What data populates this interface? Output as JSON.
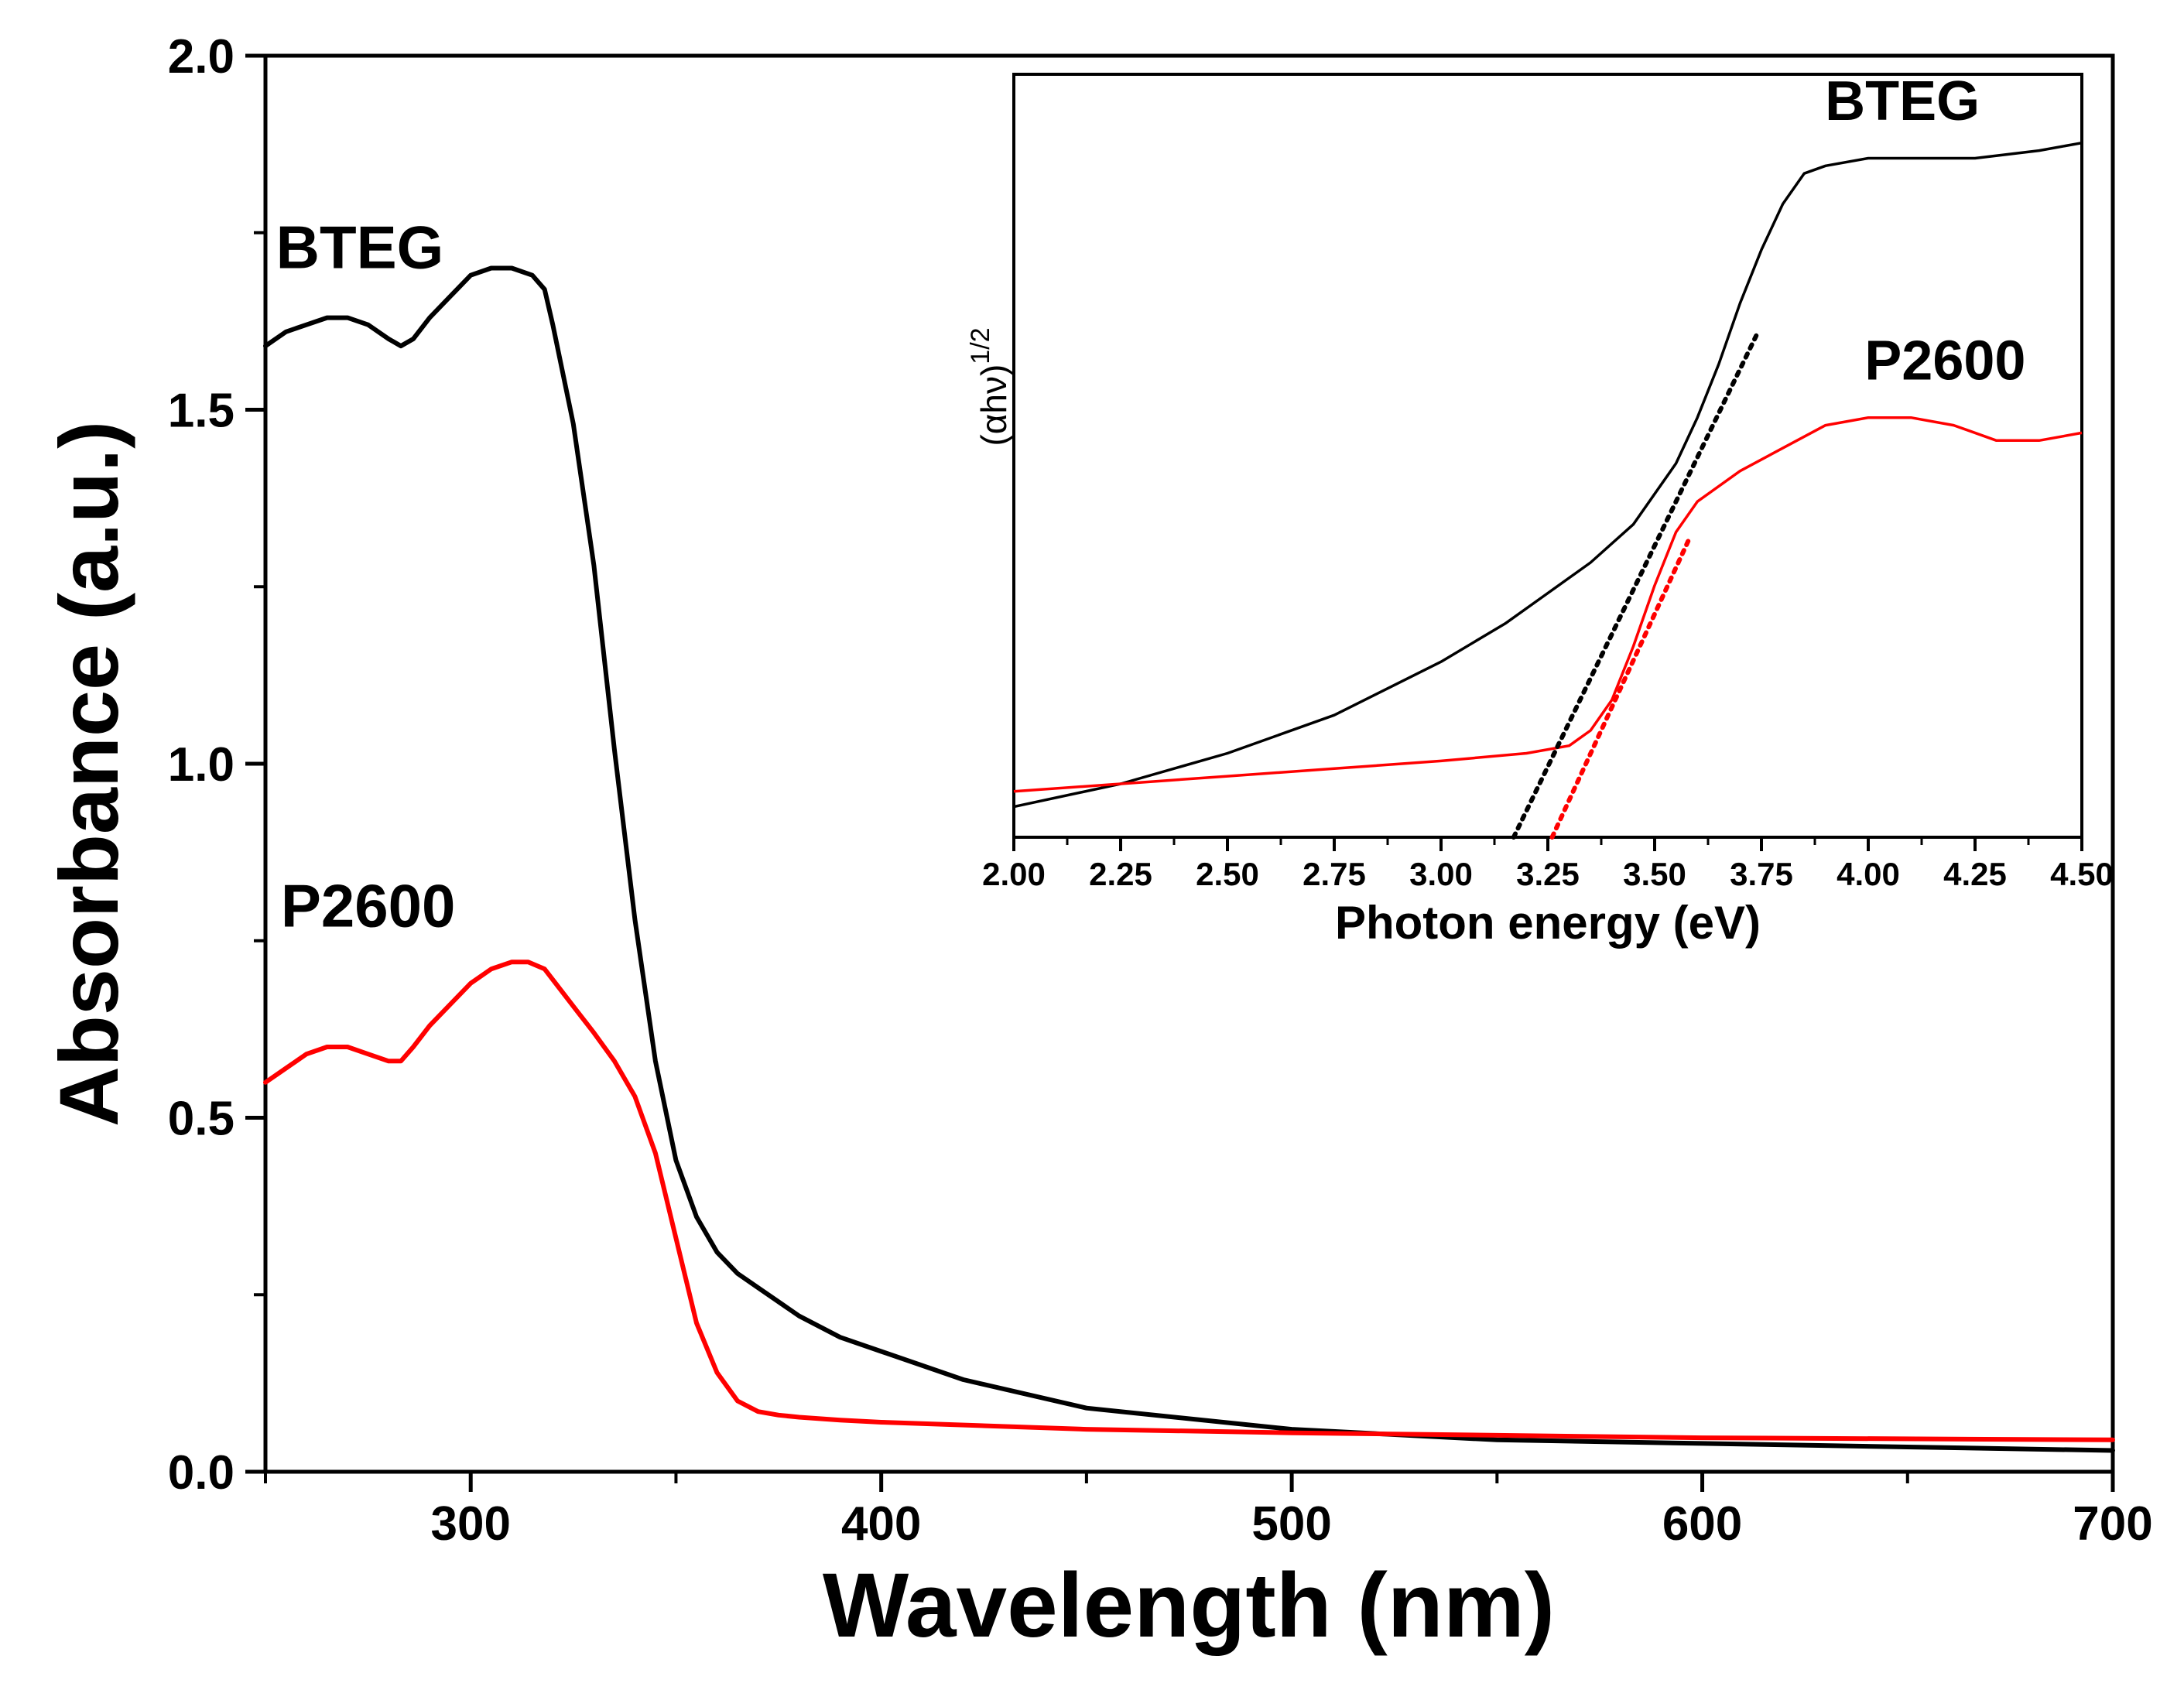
{
  "chart_data": [
    {
      "type": "line",
      "role": "main",
      "title": "",
      "xlabel": "Wavelength (nm)",
      "ylabel": "Absorbance (a.u.)",
      "xlim": [
        250,
        700
      ],
      "ylim": [
        0.0,
        2.0
      ],
      "xticks": [
        300,
        400,
        500,
        600,
        700
      ],
      "xtick_labels": [
        "300",
        "400",
        "500",
        "600",
        "700"
      ],
      "yticks": [
        0.0,
        0.5,
        1.0,
        1.5,
        2.0
      ],
      "ytick_labels": [
        "0.0",
        "0.5",
        "1.0",
        "1.5",
        "2.0"
      ],
      "grid": false,
      "series": [
        {
          "name": "BTEG",
          "color": "#000000",
          "x": [
            250,
            255,
            260,
            265,
            270,
            275,
            280,
            283,
            286,
            290,
            295,
            300,
            305,
            310,
            315,
            318,
            320,
            325,
            330,
            335,
            340,
            345,
            350,
            355,
            360,
            365,
            370,
            380,
            390,
            400,
            420,
            450,
            500,
            550,
            600,
            650,
            700
          ],
          "y": [
            1.59,
            1.61,
            1.62,
            1.63,
            1.63,
            1.62,
            1.6,
            1.59,
            1.6,
            1.63,
            1.66,
            1.69,
            1.7,
            1.7,
            1.69,
            1.67,
            1.62,
            1.48,
            1.28,
            1.02,
            0.78,
            0.58,
            0.44,
            0.36,
            0.31,
            0.28,
            0.26,
            0.22,
            0.19,
            0.17,
            0.13,
            0.09,
            0.06,
            0.045,
            0.04,
            0.035,
            0.03
          ]
        },
        {
          "name": "P2600",
          "color": "#ff0000",
          "x": [
            250,
            255,
            260,
            265,
            270,
            275,
            280,
            283,
            286,
            290,
            295,
            300,
            305,
            310,
            314,
            318,
            322,
            326,
            330,
            335,
            340,
            345,
            350,
            355,
            360,
            365,
            370,
            375,
            380,
            390,
            400,
            450,
            500,
            600,
            700
          ],
          "y": [
            0.55,
            0.57,
            0.59,
            0.6,
            0.6,
            0.59,
            0.58,
            0.58,
            0.6,
            0.63,
            0.66,
            0.69,
            0.71,
            0.72,
            0.72,
            0.71,
            0.68,
            0.65,
            0.62,
            0.58,
            0.53,
            0.45,
            0.33,
            0.21,
            0.14,
            0.1,
            0.085,
            0.08,
            0.077,
            0.073,
            0.07,
            0.06,
            0.055,
            0.048,
            0.045
          ]
        }
      ],
      "annotations": [
        {
          "text": "BTEG",
          "x": 273,
          "y": 1.7
        },
        {
          "text": "P2600",
          "x": 275,
          "y": 0.77
        }
      ]
    },
    {
      "type": "line",
      "role": "inset",
      "title": "",
      "xlabel": "Photon energy (eV)",
      "ylabel": "(αhν)",
      "ylabel_superscript": "1/2",
      "xlim": [
        2.0,
        4.5
      ],
      "ylim": [
        0,
        1
      ],
      "xticks": [
        2.0,
        2.25,
        2.5,
        2.75,
        3.0,
        3.25,
        3.5,
        3.75,
        4.0,
        4.25,
        4.5
      ],
      "xtick_labels": [
        "2.00",
        "2.25",
        "2.50",
        "2.75",
        "3.00",
        "3.25",
        "3.50",
        "3.75",
        "4.00",
        "4.25",
        "4.50"
      ],
      "yticks": [],
      "grid": false,
      "series": [
        {
          "name": "BTEG",
          "color": "#000000",
          "x": [
            2.0,
            2.25,
            2.5,
            2.75,
            3.0,
            3.15,
            3.25,
            3.35,
            3.45,
            3.55,
            3.6,
            3.65,
            3.7,
            3.75,
            3.8,
            3.85,
            3.9,
            4.0,
            4.1,
            4.25,
            4.4,
            4.5
          ],
          "y": [
            0.04,
            0.07,
            0.11,
            0.16,
            0.23,
            0.28,
            0.32,
            0.36,
            0.41,
            0.49,
            0.55,
            0.62,
            0.7,
            0.77,
            0.83,
            0.87,
            0.88,
            0.89,
            0.89,
            0.89,
            0.9,
            0.91
          ]
        },
        {
          "name": "P2600",
          "color": "#ff0000",
          "x": [
            2.0,
            2.25,
            2.5,
            2.75,
            3.0,
            3.2,
            3.3,
            3.35,
            3.4,
            3.45,
            3.5,
            3.55,
            3.6,
            3.7,
            3.8,
            3.9,
            4.0,
            4.1,
            4.2,
            4.3,
            4.4,
            4.5
          ],
          "y": [
            0.06,
            0.07,
            0.08,
            0.09,
            0.1,
            0.11,
            0.12,
            0.14,
            0.18,
            0.25,
            0.33,
            0.4,
            0.44,
            0.48,
            0.51,
            0.54,
            0.55,
            0.55,
            0.54,
            0.52,
            0.52,
            0.53
          ]
        }
      ],
      "tangent_lines": [
        {
          "series": "BTEG",
          "color": "#000000",
          "style": "dotted",
          "x": [
            3.17,
            3.74
          ],
          "y": [
            0.0,
            0.66
          ]
        },
        {
          "series": "P2600",
          "color": "#ff0000",
          "style": "dotted",
          "x": [
            3.26,
            3.58
          ],
          "y": [
            0.0,
            0.39
          ]
        }
      ],
      "annotations": [
        {
          "text": "BTEG",
          "x": 4.08,
          "y": 0.94
        },
        {
          "text": "P2600",
          "x": 4.18,
          "y": 0.6
        }
      ]
    }
  ]
}
